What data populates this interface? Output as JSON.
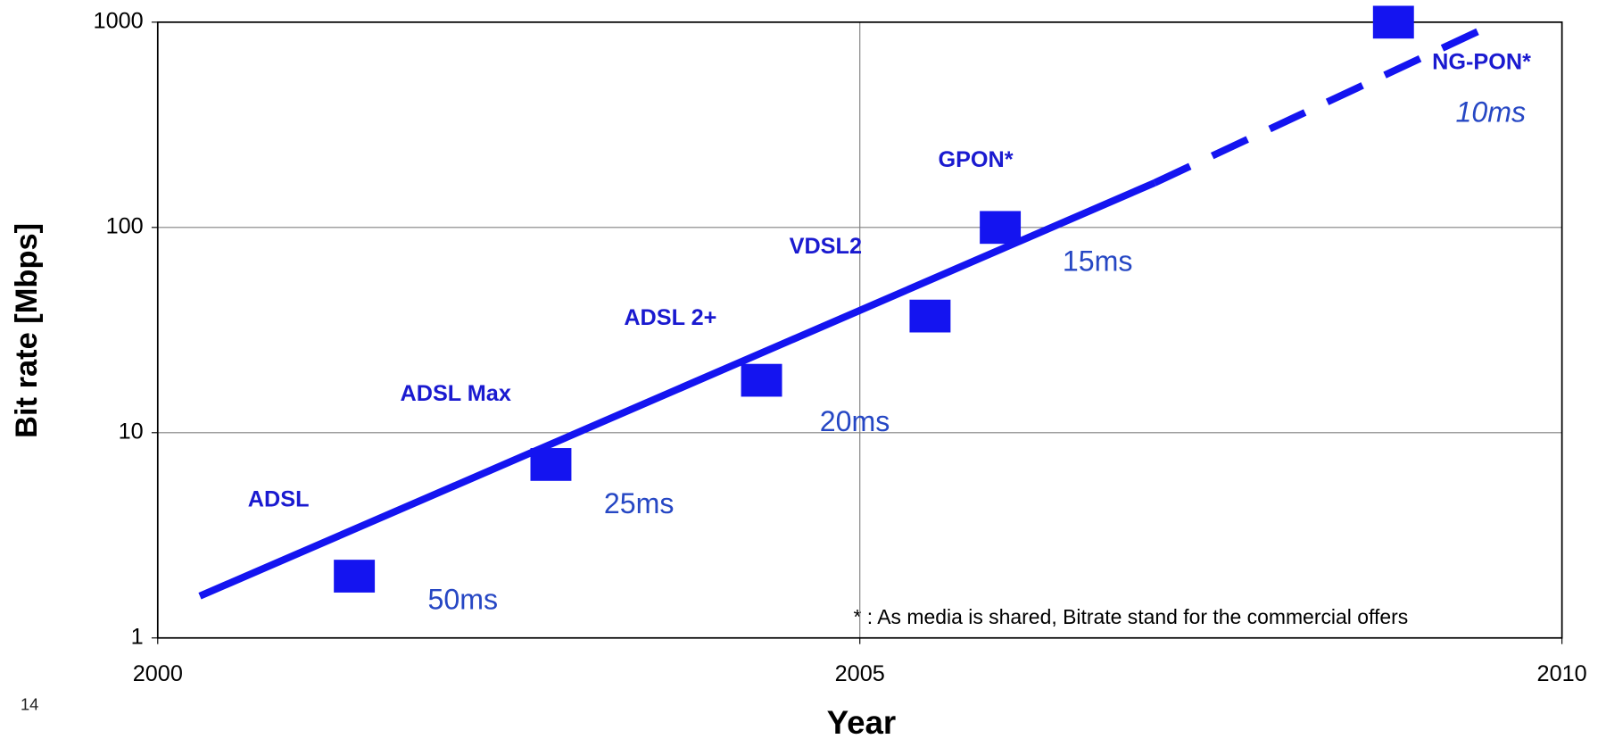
{
  "chart_data": {
    "type": "log-scatter-trend",
    "page_number": "14",
    "x_label": "Year",
    "y_label": "Bit rate [Mbps]",
    "footnote": "* : As media is shared, Bitrate stand for the commercial offers",
    "xlim": [
      2000,
      2010
    ],
    "xticks": [
      2000,
      2005,
      2010
    ],
    "ylim": [
      1,
      1000
    ],
    "yticks": [
      1,
      10,
      100,
      1000
    ],
    "log_y": true,
    "grid": true,
    "color": "#1414f0",
    "points": [
      {
        "name": "ADSL",
        "year": 2001.4,
        "value": 2,
        "latency": "50ms"
      },
      {
        "name": "ADSL Max",
        "year": 2002.8,
        "value": 7,
        "latency": "25ms"
      },
      {
        "name": "ADSL 2+",
        "year": 2004.3,
        "value": 18,
        "latency": "20ms"
      },
      {
        "name": "VDSL2",
        "year": 2005.5,
        "value": 37
      },
      {
        "name": "GPON*",
        "year": 2006,
        "value": 100,
        "latency": "15ms"
      },
      {
        "name": "NG-PON*",
        "year": 2008.8,
        "value": 1000,
        "latency": "10ms"
      }
    ],
    "trend_solid": {
      "x": [
        2000.3,
        2007.1
      ],
      "values": [
        1.6,
        165
      ]
    },
    "trend_dashed": {
      "x": [
        2007.1,
        2009.4
      ],
      "values": [
        165,
        900
      ]
    }
  }
}
